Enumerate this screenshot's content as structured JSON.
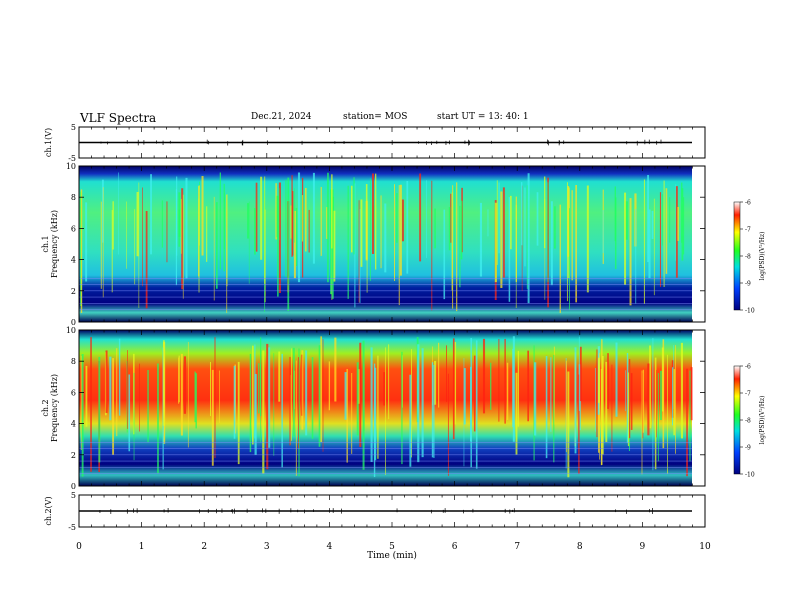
{
  "header": {
    "title": "VLF Spectra",
    "date": "Dec.21, 2024",
    "station": "station= MOS",
    "start": "start  UT =  13: 40: 1"
  },
  "chart_data": [
    {
      "type": "line",
      "name_label": "ch.1(V)",
      "ylabel": "ch.1(V)",
      "yticks": [
        "5",
        "-5"
      ],
      "ylim": [
        -5,
        5
      ],
      "series": [
        {
          "values_note": "",
          "level": 0
        }
      ]
    },
    {
      "type": "heatmap",
      "ylabel_top": "ch.1",
      "ylabel": "Frequency (kHz)",
      "ylim": [
        0,
        10
      ],
      "yticks": [
        "0",
        "2",
        "4",
        "6",
        "8",
        "10"
      ],
      "colorbar": {
        "label": "log(PSD)(V²/Hz)",
        "ticks": [
          "-6",
          "-7",
          "-8",
          "-9",
          "-10"
        ],
        "range": [
          -10,
          -6
        ]
      }
    },
    {
      "type": "heatmap",
      "ylabel_top": "ch.2",
      "ylabel": "Frequency (kHz)",
      "ylim": [
        0,
        10
      ],
      "yticks": [
        "0",
        "2",
        "4",
        "6",
        "8",
        "10"
      ],
      "colorbar": {
        "label": "log(PSD)(V²/Hz)",
        "ticks": [
          "-6",
          "-7",
          "-8",
          "-9",
          "-10"
        ],
        "range": [
          -10,
          -6
        ]
      }
    },
    {
      "type": "line",
      "ylabel": "ch.2(V)",
      "yticks": [
        "5",
        "-5"
      ],
      "ylim": [
        -5,
        5
      ]
    }
  ],
  "xaxis": {
    "label": "Time  (min)",
    "ticks": [
      "0",
      "1",
      "2",
      "3",
      "4",
      "5",
      "6",
      "7",
      "8",
      "9",
      "10"
    ],
    "xlim": [
      0,
      10
    ]
  },
  "colors": {
    "spectrogram_ch1": "#20e0c0",
    "spectrogram_ch2": "#ff2020",
    "frame": "#000000"
  }
}
